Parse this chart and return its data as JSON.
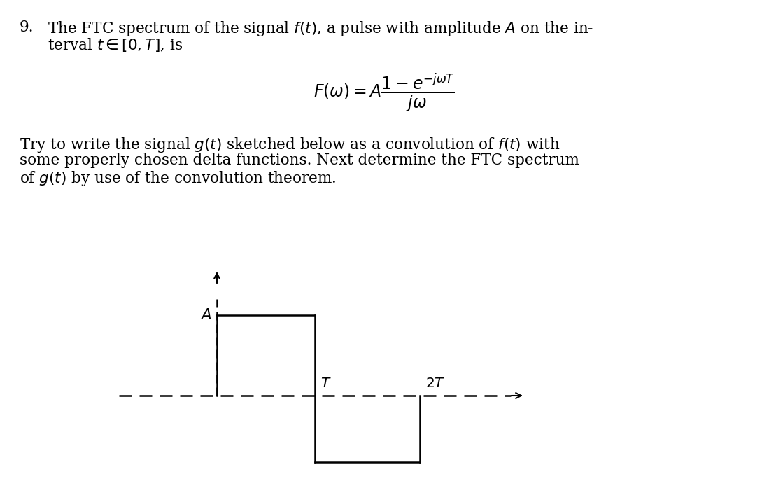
{
  "background_color": "#ffffff",
  "text_color": "#000000",
  "fig_width": 10.99,
  "fig_height": 6.94,
  "dpi": 100,
  "problem_number": "9.",
  "line1_text": "The FTC spectrum of the signal $f(t)$, a pulse with amplitude $A$ on the in-",
  "line2_text": "terval $t \\in [0, T]$, is",
  "para_line1": "Try to write the signal $g(t)$ sketched below as a convolution of $f(t)$ with",
  "para_line2": "some properly chosen delta functions. Next determine the FTC spectrum",
  "para_line3": "of $g(t)$ by use of the convolution theorem.",
  "font_size_main": 15.5,
  "font_size_formula": 16
}
